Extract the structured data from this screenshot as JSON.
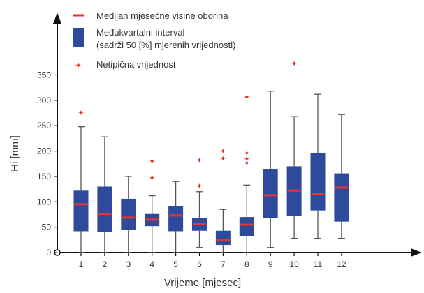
{
  "chart_data": {
    "type": "box",
    "xlabel": "Vrijeme [mjesec]",
    "ylabel": "Hi [mm]",
    "categories": [
      "1",
      "2",
      "3",
      "4",
      "5",
      "6",
      "7",
      "8",
      "9",
      "10",
      "11",
      "12"
    ],
    "ylim": [
      0,
      400
    ],
    "yticks": [
      0,
      50,
      100,
      150,
      200,
      250,
      300,
      350
    ],
    "legend": {
      "placement": "top-left",
      "median_label": "Medijan mjesečne visine oborina",
      "iqr_label_line1": "Međukvartalni interval",
      "iqr_label_line2": "(sadrži 50 [%] mjerenih vrijednosti)",
      "outlier_label": "Netipična vrijednost"
    },
    "boxes": [
      {
        "month": "1",
        "min": 0,
        "q1": 42,
        "median": 95,
        "q3": 122,
        "max": 248,
        "outliers": [
          276
        ]
      },
      {
        "month": "2",
        "min": 0,
        "q1": 40,
        "median": 76,
        "q3": 130,
        "max": 228,
        "outliers": []
      },
      {
        "month": "3",
        "min": 0,
        "q1": 45,
        "median": 69,
        "q3": 106,
        "max": 150,
        "outliers": []
      },
      {
        "month": "4",
        "min": 0,
        "q1": 52,
        "median": 65,
        "q3": 76,
        "max": 112,
        "outliers": [
          147,
          180
        ]
      },
      {
        "month": "5",
        "min": 0,
        "q1": 42,
        "median": 73,
        "q3": 91,
        "max": 140,
        "outliers": []
      },
      {
        "month": "6",
        "min": 10,
        "q1": 43,
        "median": 56,
        "q3": 68,
        "max": 120,
        "outliers": [
          131,
          182
        ]
      },
      {
        "month": "7",
        "min": 0,
        "q1": 15,
        "median": 25,
        "q3": 43,
        "max": 85,
        "outliers": [
          186,
          200
        ]
      },
      {
        "month": "8",
        "min": 0,
        "q1": 33,
        "median": 55,
        "q3": 70,
        "max": 133,
        "outliers": [
          177,
          185,
          196,
          307
        ]
      },
      {
        "month": "9",
        "min": 10,
        "q1": 68,
        "median": 113,
        "q3": 165,
        "max": 318,
        "outliers": []
      },
      {
        "month": "10",
        "min": 28,
        "q1": 72,
        "median": 122,
        "q3": 170,
        "max": 268,
        "outliers": [
          373
        ]
      },
      {
        "month": "11",
        "min": 28,
        "q1": 83,
        "median": 116,
        "q3": 196,
        "max": 312,
        "outliers": []
      },
      {
        "month": "12",
        "min": 28,
        "q1": 61,
        "median": 128,
        "q3": 156,
        "max": 272,
        "outliers": []
      }
    ],
    "colors": {
      "box": "#2e4a9a",
      "median": "#e8332e",
      "outlier": "#e8332e",
      "whisker": "#555555",
      "axis": "#111111"
    }
  }
}
